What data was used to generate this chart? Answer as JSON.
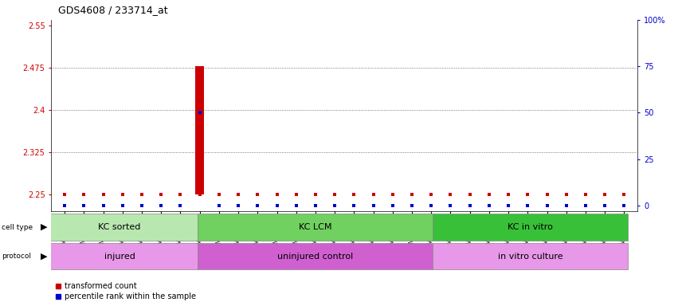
{
  "title": "GDS4608 / 233714_at",
  "samples": [
    "GSM753020",
    "GSM753021",
    "GSM753022",
    "GSM753023",
    "GSM753024",
    "GSM753025",
    "GSM753026",
    "GSM753027",
    "GSM753028",
    "GSM753029",
    "GSM753010",
    "GSM753011",
    "GSM753012",
    "GSM753013",
    "GSM753014",
    "GSM753015",
    "GSM753016",
    "GSM753017",
    "GSM753018",
    "GSM753019",
    "GSM753030",
    "GSM753031",
    "GSM753032",
    "GSM753035",
    "GSM753037",
    "GSM753039",
    "GSM753042",
    "GSM753044",
    "GSM753047",
    "GSM753049"
  ],
  "transformed_counts": [
    2.25,
    2.25,
    2.25,
    2.25,
    2.25,
    2.25,
    2.25,
    2.478,
    2.25,
    2.25,
    2.25,
    2.25,
    2.25,
    2.25,
    2.25,
    2.25,
    2.25,
    2.25,
    2.25,
    2.25,
    2.25,
    2.25,
    2.25,
    2.25,
    2.25,
    2.25,
    2.25,
    2.25,
    2.25,
    2.25
  ],
  "percentile_ranks": [
    0,
    0,
    0,
    0,
    0,
    0,
    0,
    50,
    0,
    0,
    0,
    0,
    0,
    0,
    0,
    0,
    0,
    0,
    0,
    0,
    0,
    0,
    0,
    0,
    0,
    0,
    0,
    0,
    0,
    0
  ],
  "ylim_left": [
    2.22,
    2.56
  ],
  "ylim_right": [
    -3.0,
    100.0
  ],
  "yticks_left": [
    2.25,
    2.325,
    2.4,
    2.475,
    2.55
  ],
  "yticks_right": [
    0,
    25,
    50,
    75,
    100
  ],
  "cell_type_groups": [
    {
      "label": "KC sorted",
      "start": 0,
      "end": 7,
      "color": "#b8e8b0"
    },
    {
      "label": "KC LCM",
      "start": 8,
      "end": 19,
      "color": "#70d060"
    },
    {
      "label": "KC in vitro",
      "start": 20,
      "end": 29,
      "color": "#38c038"
    }
  ],
  "protocol_groups": [
    {
      "label": "injured",
      "start": 0,
      "end": 7,
      "color": "#e898e8"
    },
    {
      "label": "uninjured control",
      "start": 8,
      "end": 19,
      "color": "#d060d0"
    },
    {
      "label": "in vitro culture",
      "start": 20,
      "end": 29,
      "color": "#e898e8"
    }
  ],
  "bar_color_red": "#cc0000",
  "bar_color_blue": "#0000cc",
  "baseline": 2.25,
  "label_color_left": "#cc0000",
  "label_color_right": "#0000cc",
  "tick_label_fontsize": 7,
  "title_fontsize": 9,
  "sample_fontsize": 5.5,
  "annotation_fontsize": 8,
  "legend_fontsize": 7,
  "dot_grid_color": "#555555",
  "dot_grid_yticks": [
    2.325,
    2.4,
    2.475
  ]
}
